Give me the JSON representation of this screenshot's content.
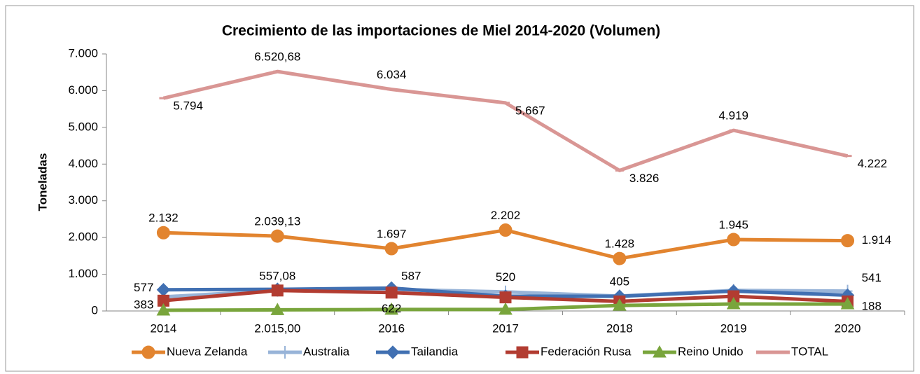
{
  "chart_data": {
    "type": "line",
    "title": "Crecimiento de las importaciones de Miel 2014-2020 (Volumen)",
    "y_label": "Toneladas",
    "categories": [
      "2014",
      "2.015,00",
      "2016",
      "2017",
      "2018",
      "2019",
      "2020"
    ],
    "ylim": [
      0,
      7000
    ],
    "yticks": [
      0,
      {
        "value": 1000,
        "label": "1.000"
      },
      {
        "value": 2000,
        "label": "2.000"
      },
      {
        "value": 3000,
        "label": "3.000"
      },
      {
        "value": 4000,
        "label": "4.000"
      },
      {
        "value": 5000,
        "label": "5.000"
      },
      {
        "value": 6000,
        "label": "6.000"
      },
      {
        "value": 7000,
        "label": "7.000"
      }
    ],
    "legend": "bottom",
    "series": [
      {
        "name": "Nueva Zelanda",
        "color": "#e2842f",
        "marker": "circle",
        "values": [
          2132,
          2039.13,
          1697,
          2202,
          1428,
          1945,
          1914
        ],
        "value_labels": [
          "2.132",
          "2.039,13",
          "1.697",
          "2.202",
          "1.428",
          "1.945",
          "1.914"
        ]
      },
      {
        "name": "Australia",
        "color": "#98b4d8",
        "marker": "plus",
        "values": [
          383,
          560,
          587,
          520,
          405,
          560,
          541
        ],
        "value_labels": [
          "383",
          null,
          "587",
          "520",
          "405",
          null,
          "541"
        ]
      },
      {
        "name": "Tailandia",
        "color": "#4170b2",
        "marker": "diamond",
        "values": [
          577,
          590,
          622,
          400,
          400,
          540,
          430
        ],
        "value_labels": [
          "577",
          null,
          "622",
          null,
          null,
          null,
          null
        ]
      },
      {
        "name": "Federación Rusa",
        "color": "#b23c31",
        "marker": "square",
        "values": [
          280,
          557.08,
          500,
          370,
          260,
          400,
          260
        ],
        "value_labels": [
          null,
          "557,08",
          null,
          null,
          null,
          null,
          null
        ]
      },
      {
        "name": "Reino Unido",
        "color": "#79a53c",
        "marker": "triangle",
        "values": [
          20,
          30,
          40,
          40,
          150,
          190,
          188
        ],
        "value_labels": [
          null,
          null,
          null,
          null,
          null,
          null,
          "188"
        ]
      },
      {
        "name": "TOTAL",
        "color": "#d99694",
        "marker": "dash",
        "values": [
          5794,
          6520.68,
          6034,
          5667,
          3826,
          4919,
          4222
        ],
        "value_labels": [
          "5.794",
          "6.520,68",
          "6.034",
          "5.667",
          "3.826",
          "4.919",
          "4.222"
        ]
      }
    ]
  }
}
